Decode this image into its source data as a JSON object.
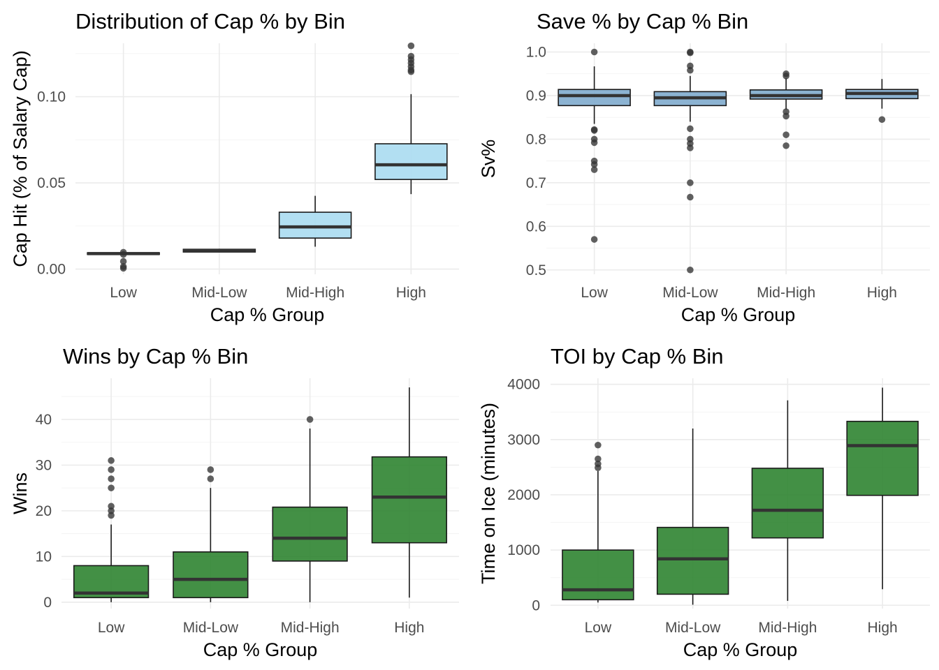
{
  "chart_data": [
    {
      "type": "box",
      "title": "Distribution of Cap % by Bin",
      "xlabel": "Cap % Group",
      "ylabel": "Cap Hit (% of Salary Cap)",
      "categories": [
        "Low",
        "Mid-Low",
        "Mid-High",
        "High"
      ],
      "ylim": [
        -0.003,
        0.131
      ],
      "yticks": [
        0.0,
        0.05,
        0.1
      ],
      "ytick_labels": [
        "0.00",
        "0.05",
        "0.10"
      ],
      "minor_yticks": [
        0.025,
        0.075,
        0.125
      ],
      "fill": "#aadcf1",
      "grid": true,
      "boxes": [
        {
          "category": "Low",
          "whisker_low": 0.0085,
          "q1": 0.0085,
          "median": 0.009,
          "q3": 0.0095,
          "whisker_high": 0.0097,
          "outliers": [
            0.0098,
            0.0085,
            0.0045,
            0.0015,
            0.0005
          ]
        },
        {
          "category": "Mid-Low",
          "whisker_low": 0.0099,
          "q1": 0.0099,
          "median": 0.0107,
          "q3": 0.0115,
          "whisker_high": 0.0118,
          "outliers": []
        },
        {
          "category": "Mid-High",
          "whisker_low": 0.013,
          "q1": 0.018,
          "median": 0.0245,
          "q3": 0.033,
          "whisker_high": 0.0425,
          "outliers": []
        },
        {
          "category": "High",
          "whisker_low": 0.0435,
          "q1": 0.052,
          "median": 0.0605,
          "q3": 0.0727,
          "whisker_high": 0.1015,
          "outliers": [
            0.1295,
            0.1235,
            0.1215,
            0.1195,
            0.1175,
            0.1155,
            0.1145
          ]
        }
      ]
    },
    {
      "type": "box",
      "title": "Save % by Cap % Bin",
      "xlabel": "Cap % Group",
      "ylabel": "Sv%",
      "categories": [
        "Low",
        "Mid-Low",
        "Mid-High",
        "High"
      ],
      "ylim": [
        0.49,
        1.02
      ],
      "yticks": [
        0.5,
        0.6,
        0.7,
        0.8,
        0.9,
        1.0
      ],
      "ytick_labels": [
        "0.5",
        "0.6",
        "0.7",
        "0.8",
        "0.9",
        "1.0"
      ],
      "minor_yticks": [
        0.55,
        0.65,
        0.75,
        0.85,
        0.95
      ],
      "fill": "#7fabcd",
      "grid": true,
      "boxes": [
        {
          "category": "Low",
          "whisker_low": 0.835,
          "q1": 0.877,
          "median": 0.9,
          "q3": 0.914,
          "whisker_high": 0.967,
          "outliers": [
            1.0,
            0.822,
            0.82,
            0.8,
            0.792,
            0.75,
            0.742,
            0.73,
            0.57
          ]
        },
        {
          "category": "Mid-Low",
          "whisker_low": 0.84,
          "q1": 0.877,
          "median": 0.895,
          "q3": 0.909,
          "whisker_high": 0.945,
          "outliers": [
            1.0,
            0.998,
            0.968,
            0.958,
            0.824,
            0.8,
            0.79,
            0.78,
            0.7,
            0.667,
            0.5
          ]
        },
        {
          "category": "Mid-High",
          "whisker_low": 0.868,
          "q1": 0.892,
          "median": 0.9,
          "q3": 0.913,
          "whisker_high": 0.94,
          "outliers": [
            0.95,
            0.945,
            0.863,
            0.853,
            0.81,
            0.785
          ]
        },
        {
          "category": "High",
          "whisker_low": 0.87,
          "q1": 0.893,
          "median": 0.905,
          "q3": 0.914,
          "whisker_high": 0.938,
          "outliers": [
            0.845
          ]
        }
      ]
    },
    {
      "type": "box",
      "title": "Wins by Cap % Bin",
      "xlabel": "Cap % Group",
      "ylabel": "Wins",
      "categories": [
        "Low",
        "Mid-Low",
        "Mid-High",
        "High"
      ],
      "ylim": [
        -1.4,
        49
      ],
      "yticks": [
        0,
        10,
        20,
        30,
        40
      ],
      "ytick_labels": [
        "0",
        "10",
        "20",
        "30",
        "40"
      ],
      "minor_yticks": [
        5,
        15,
        25,
        35,
        45
      ],
      "fill": "#2f8431",
      "grid": true,
      "boxes": [
        {
          "category": "Low",
          "whisker_low": 0,
          "q1": 1,
          "median": 2,
          "q3": 8,
          "whisker_high": 17,
          "outliers": [
            31,
            29,
            27,
            25,
            21,
            20,
            19
          ]
        },
        {
          "category": "Mid-Low",
          "whisker_low": 0,
          "q1": 1,
          "median": 5,
          "q3": 11,
          "whisker_high": 25,
          "outliers": [
            29,
            27
          ]
        },
        {
          "category": "Mid-High",
          "whisker_low": 0,
          "q1": 9,
          "median": 14,
          "q3": 20.8,
          "whisker_high": 38,
          "outliers": [
            40
          ]
        },
        {
          "category": "High",
          "whisker_low": 1,
          "q1": 13,
          "median": 23,
          "q3": 31.8,
          "whisker_high": 47,
          "outliers": []
        }
      ]
    },
    {
      "type": "box",
      "title": "TOI by Cap % Bin",
      "xlabel": "Cap % Group",
      "ylabel": "Time on Ice (minutes)",
      "categories": [
        "Low",
        "Mid-Low",
        "Mid-High",
        "High"
      ],
      "ylim": [
        -60,
        4110
      ],
      "yticks": [
        0,
        1000,
        2000,
        3000,
        4000
      ],
      "ytick_labels": [
        "0",
        "1000",
        "2000",
        "3000",
        "4000"
      ],
      "minor_yticks": [
        500,
        1500,
        2500,
        3500
      ],
      "fill": "#2f8431",
      "grid": true,
      "boxes": [
        {
          "category": "Low",
          "whisker_low": 50,
          "q1": 100,
          "median": 280,
          "q3": 1000,
          "whisker_high": 2430,
          "outliers": [
            2900,
            2650,
            2560,
            2490
          ]
        },
        {
          "category": "Mid-Low",
          "whisker_low": 10,
          "q1": 200,
          "median": 840,
          "q3": 1410,
          "whisker_high": 3200,
          "outliers": []
        },
        {
          "category": "Mid-High",
          "whisker_low": 80,
          "q1": 1220,
          "median": 1720,
          "q3": 2480,
          "whisker_high": 3710,
          "outliers": []
        },
        {
          "category": "High",
          "whisker_low": 290,
          "q1": 1990,
          "median": 2890,
          "q3": 3330,
          "whisker_high": 3940,
          "outliers": []
        }
      ]
    }
  ]
}
